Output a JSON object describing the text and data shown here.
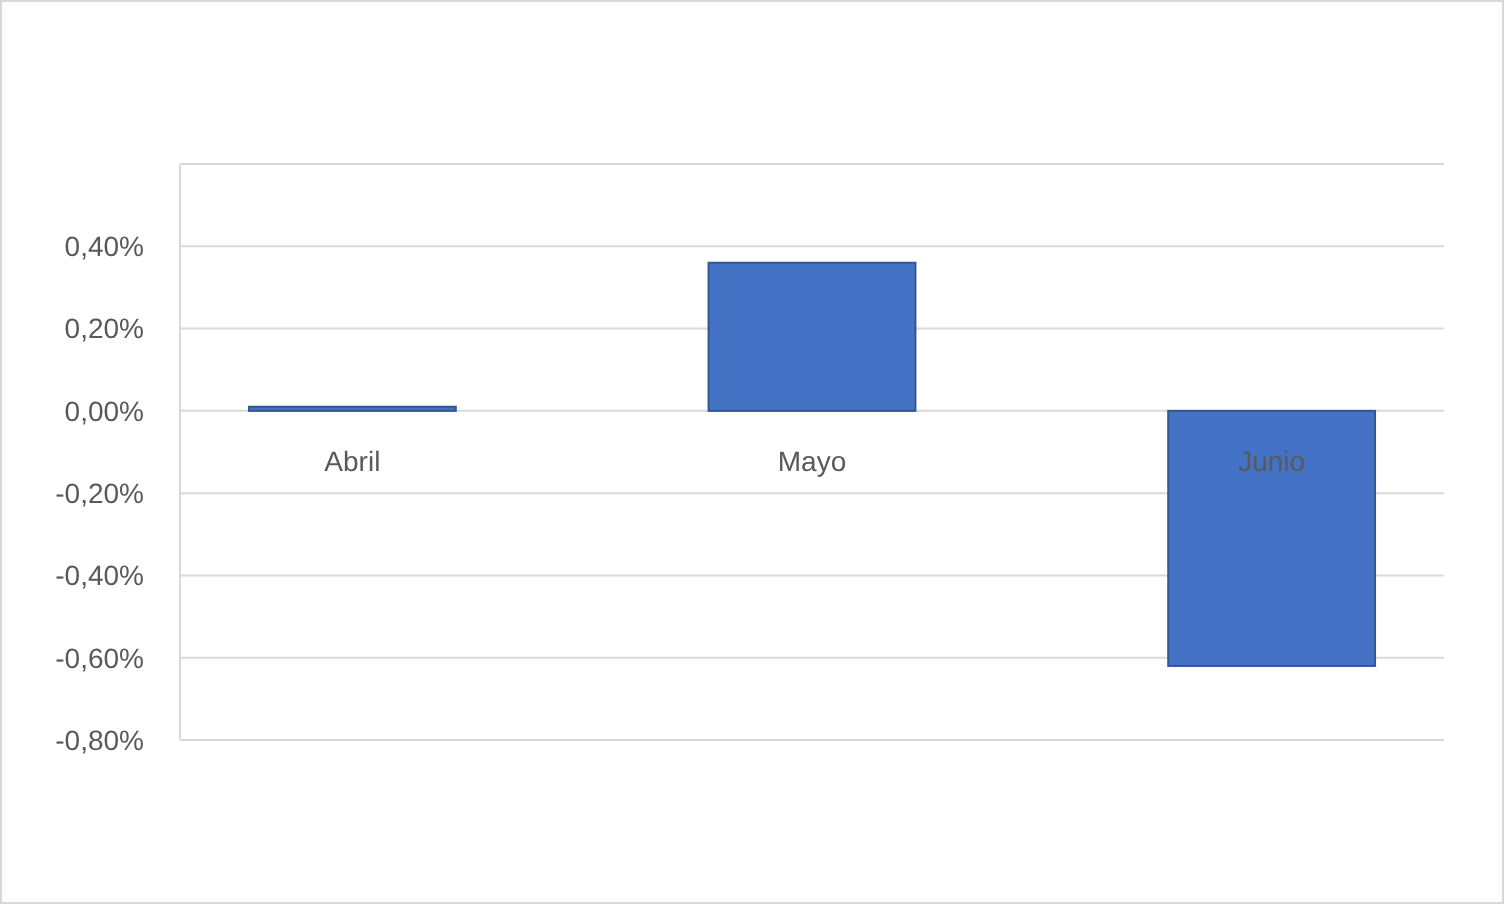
{
  "chart_data": {
    "type": "bar",
    "categories": [
      "Abril",
      "Mayo",
      "Junio"
    ],
    "values": [
      0.01,
      0.36,
      -0.62
    ],
    "color": "#4472c4",
    "ylim": [
      -0.8,
      0.6
    ],
    "yticks": [
      {
        "value": -0.8,
        "label": "-0,80%"
      },
      {
        "value": -0.6,
        "label": "-0,60%"
      },
      {
        "value": -0.4,
        "label": "-0,40%"
      },
      {
        "value": -0.2,
        "label": "-0,20%"
      },
      {
        "value": 0,
        "label": "0,00%"
      },
      {
        "value": 0.2,
        "label": "0,20%"
      },
      {
        "value": 0.4,
        "label": "0,40%"
      },
      {
        "value": 0.6,
        "label": null
      }
    ],
    "grid": "y"
  }
}
